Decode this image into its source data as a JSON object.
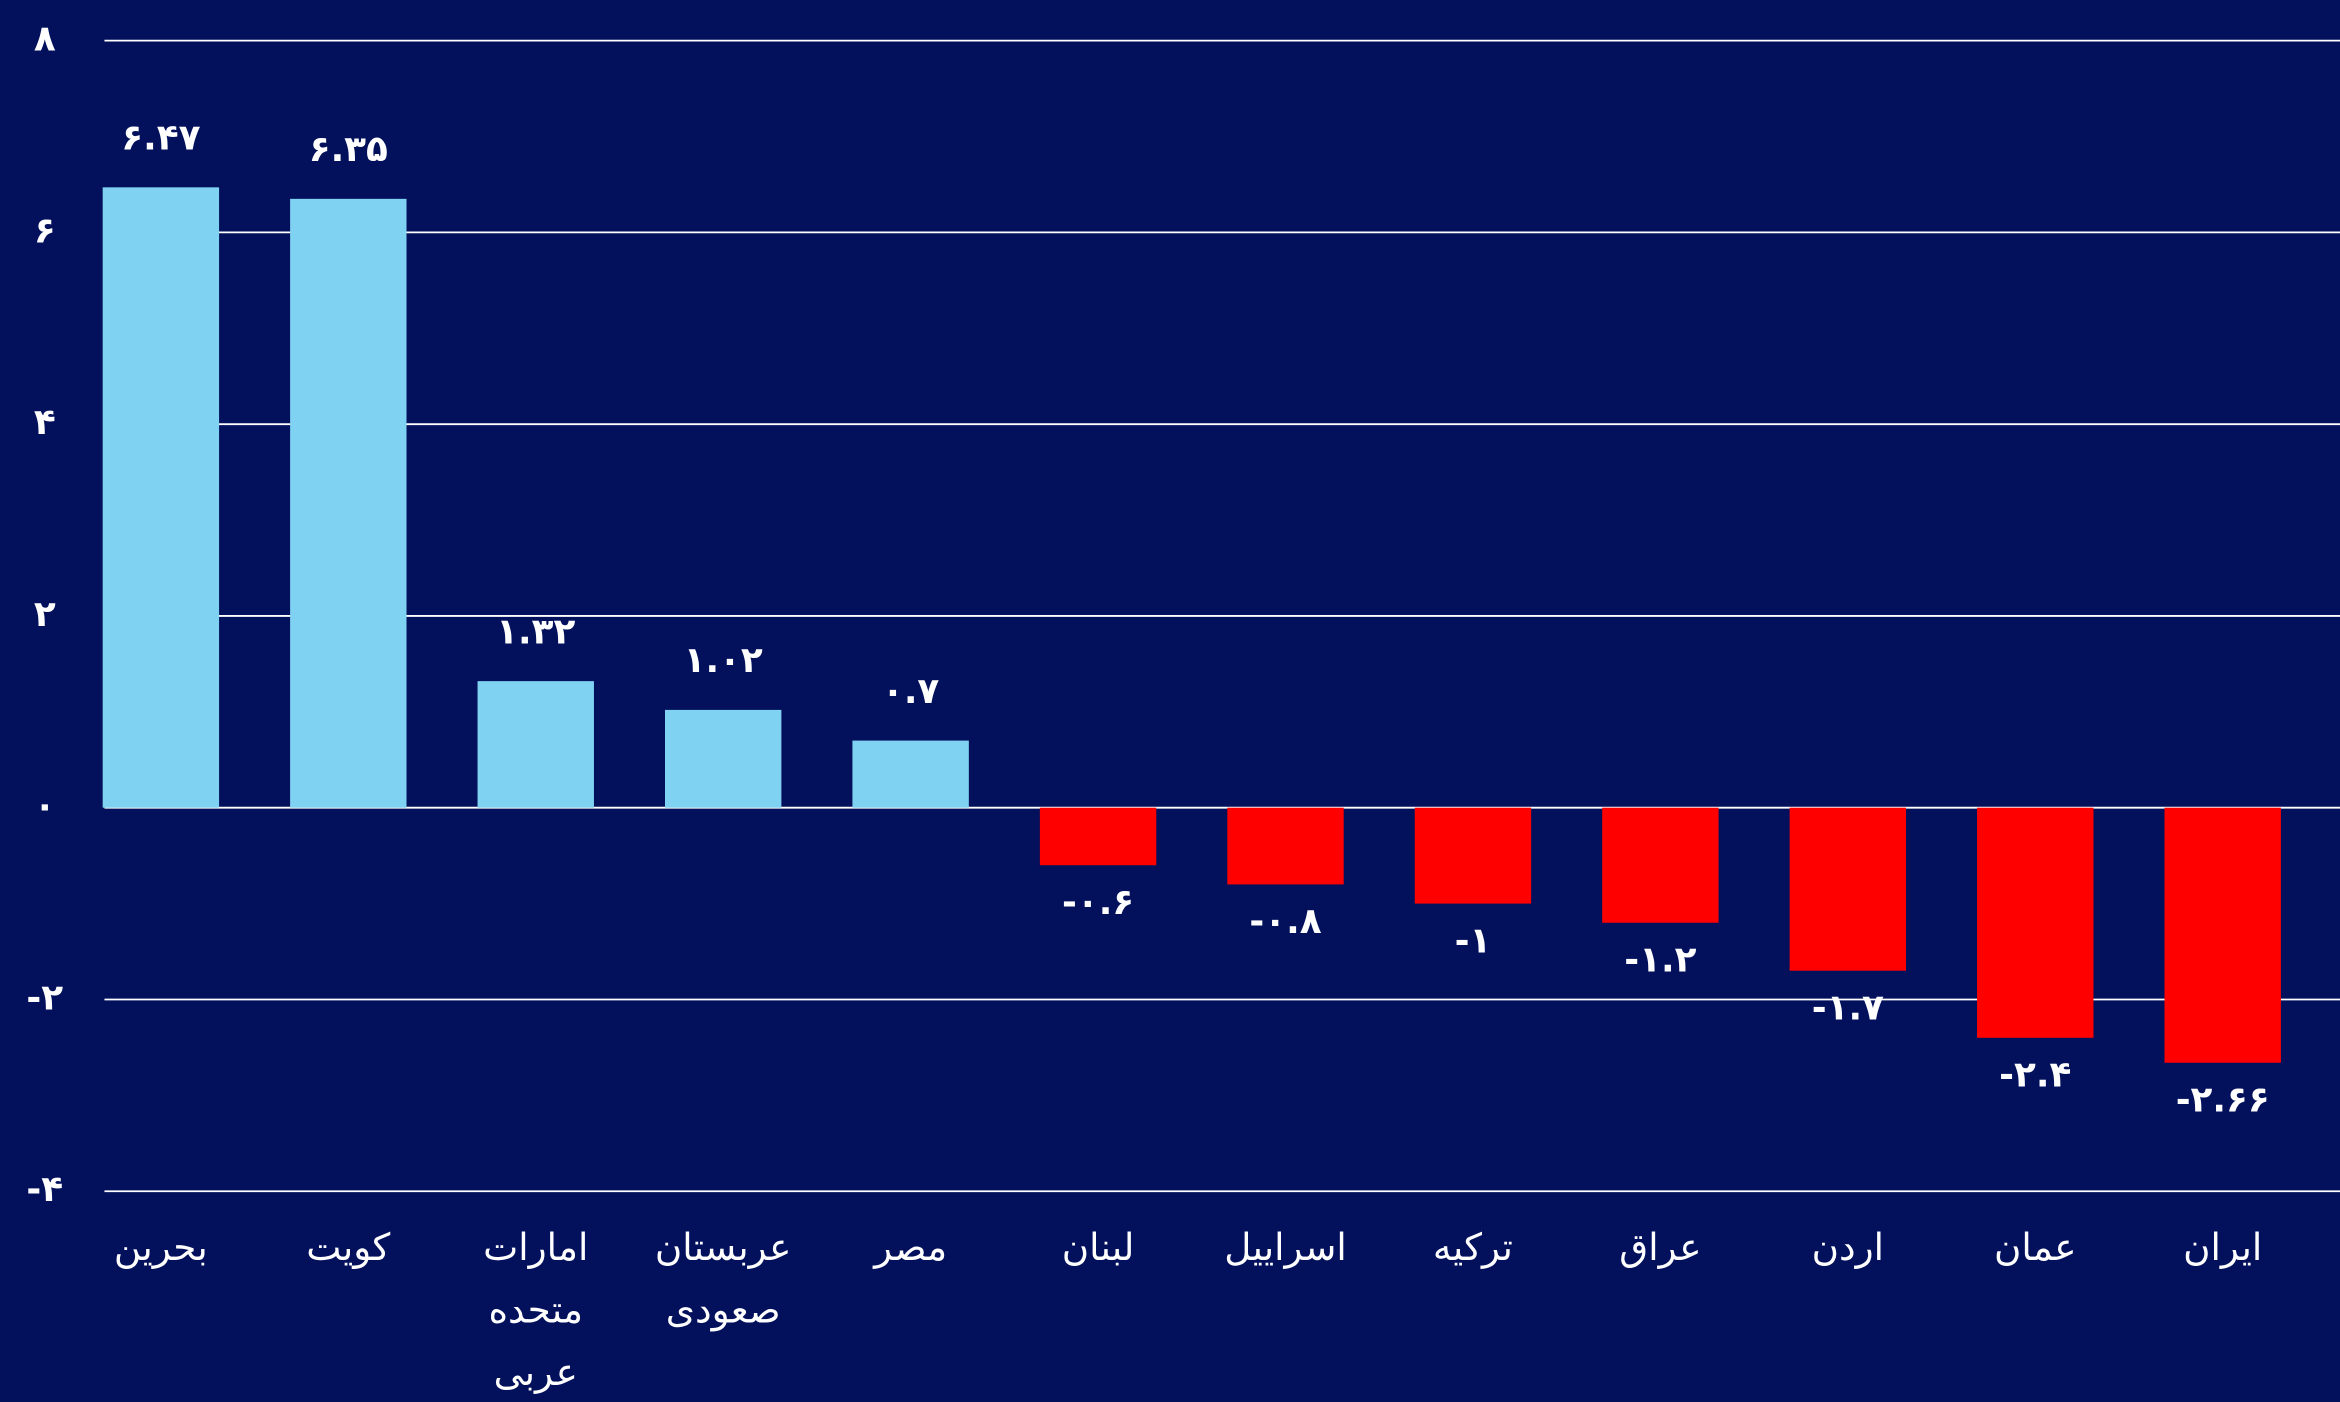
{
  "chart_data": {
    "type": "bar",
    "categories": [
      "بحرین",
      "کویت",
      "امارات متحده عربی",
      "عربستان صعودی",
      "مصر",
      "لبنان",
      "اسراییل",
      "ترکیه",
      "عراق",
      "اردن",
      "عمان",
      "ایران"
    ],
    "values": [
      6.47,
      6.35,
      1.32,
      1.02,
      0.7,
      -0.6,
      -0.8,
      -1,
      -1.2,
      -1.7,
      -2.4,
      -2.66
    ],
    "value_labels": [
      "۶.۴۷",
      "۶.۳۵",
      "۱.۳۲",
      "۱.۰۲",
      "۰.۷",
      "-۰.۶",
      "-۰.۸",
      "-۱",
      "-۱.۲",
      "-۱.۷",
      "-۲.۴",
      "-۲.۶۶"
    ],
    "color_positive": "#7fd2f1",
    "color_negative": "#ff0000",
    "ylim": [
      -4,
      8
    ],
    "yticks": [
      {
        "value": 8,
        "label": "۸"
      },
      {
        "value": 6,
        "label": "۶"
      },
      {
        "value": 4,
        "label": "۴"
      },
      {
        "value": 2,
        "label": "۲"
      },
      {
        "value": 0,
        "label": "۰"
      },
      {
        "value": -2,
        "label": "-۲"
      },
      {
        "value": -4,
        "label": "-۴"
      }
    ],
    "grid": true
  }
}
